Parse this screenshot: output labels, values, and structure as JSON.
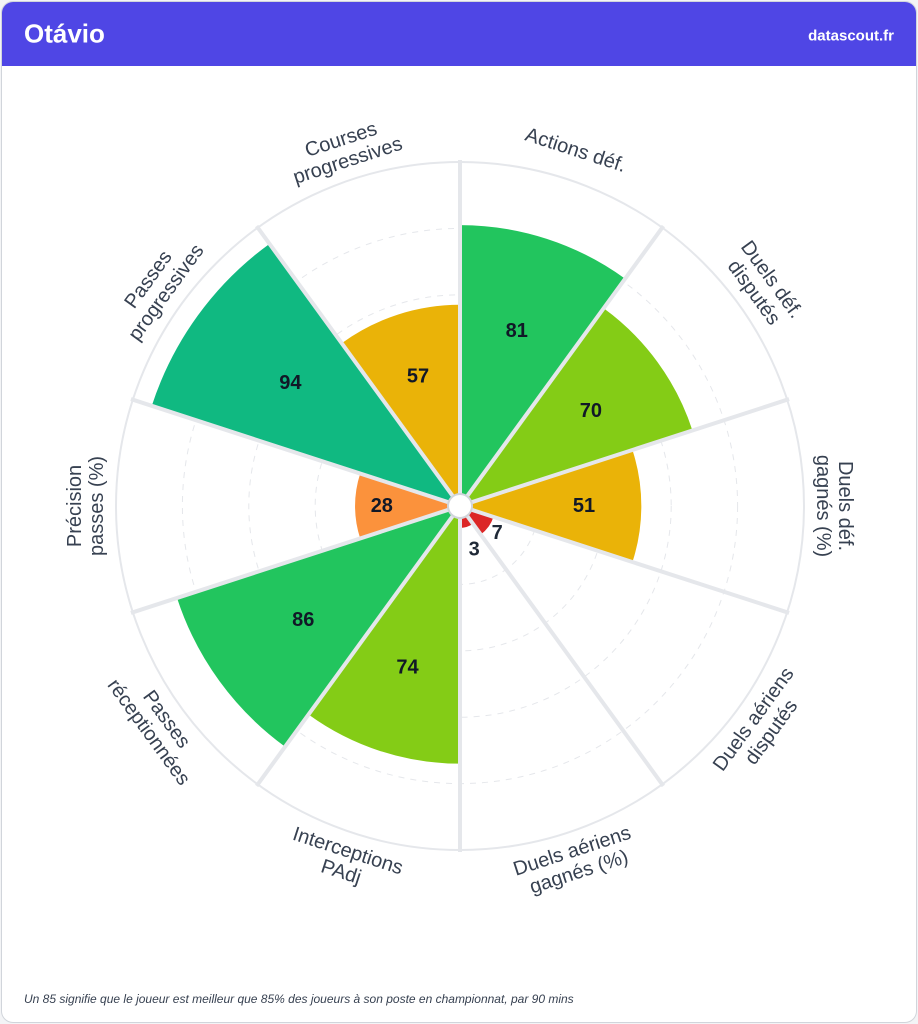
{
  "header": {
    "title": "Otávio",
    "brand": "datascout.fr"
  },
  "footnote": "Un 85 signifie que le joueur est meilleur que 85% des joueurs à son poste en championnat, par 90 mins",
  "chart_data": {
    "type": "radar-bar",
    "title": "",
    "categories": [
      "Actions déf.",
      "Duels déf. disputés",
      "Duels déf. gagnés (%)",
      "Duels aériens disputés",
      "Duels aériens gagnés (%)",
      "Interceptions PAdj",
      "Passes réceptionnées",
      "Précision passes (%)",
      "Passes progressives",
      "Courses progressives"
    ],
    "label_lines": [
      [
        "Actions déf."
      ],
      [
        "Duels déf.",
        "disputés"
      ],
      [
        "Duels déf.",
        "gagnés (%)"
      ],
      [
        "Duels aériens",
        "disputés"
      ],
      [
        "Duels aériens",
        "gagnés (%)"
      ],
      [
        "Interceptions",
        "PAdj"
      ],
      [
        "Passes",
        "réceptionnées"
      ],
      [
        "Précision",
        "passes (%)"
      ],
      [
        "Passes",
        "progressives"
      ],
      [
        "Courses",
        "progressives"
      ]
    ],
    "values": [
      81,
      70,
      51,
      7,
      3,
      74,
      86,
      28,
      94,
      57
    ],
    "ylim": [
      0,
      100
    ],
    "colors": [
      "#22c55e",
      "#84cc16",
      "#eab308",
      "#dc2626",
      "#dc2626",
      "#84cc16",
      "#22c55e",
      "#fb923c",
      "#10b981",
      "#eab308"
    ]
  }
}
